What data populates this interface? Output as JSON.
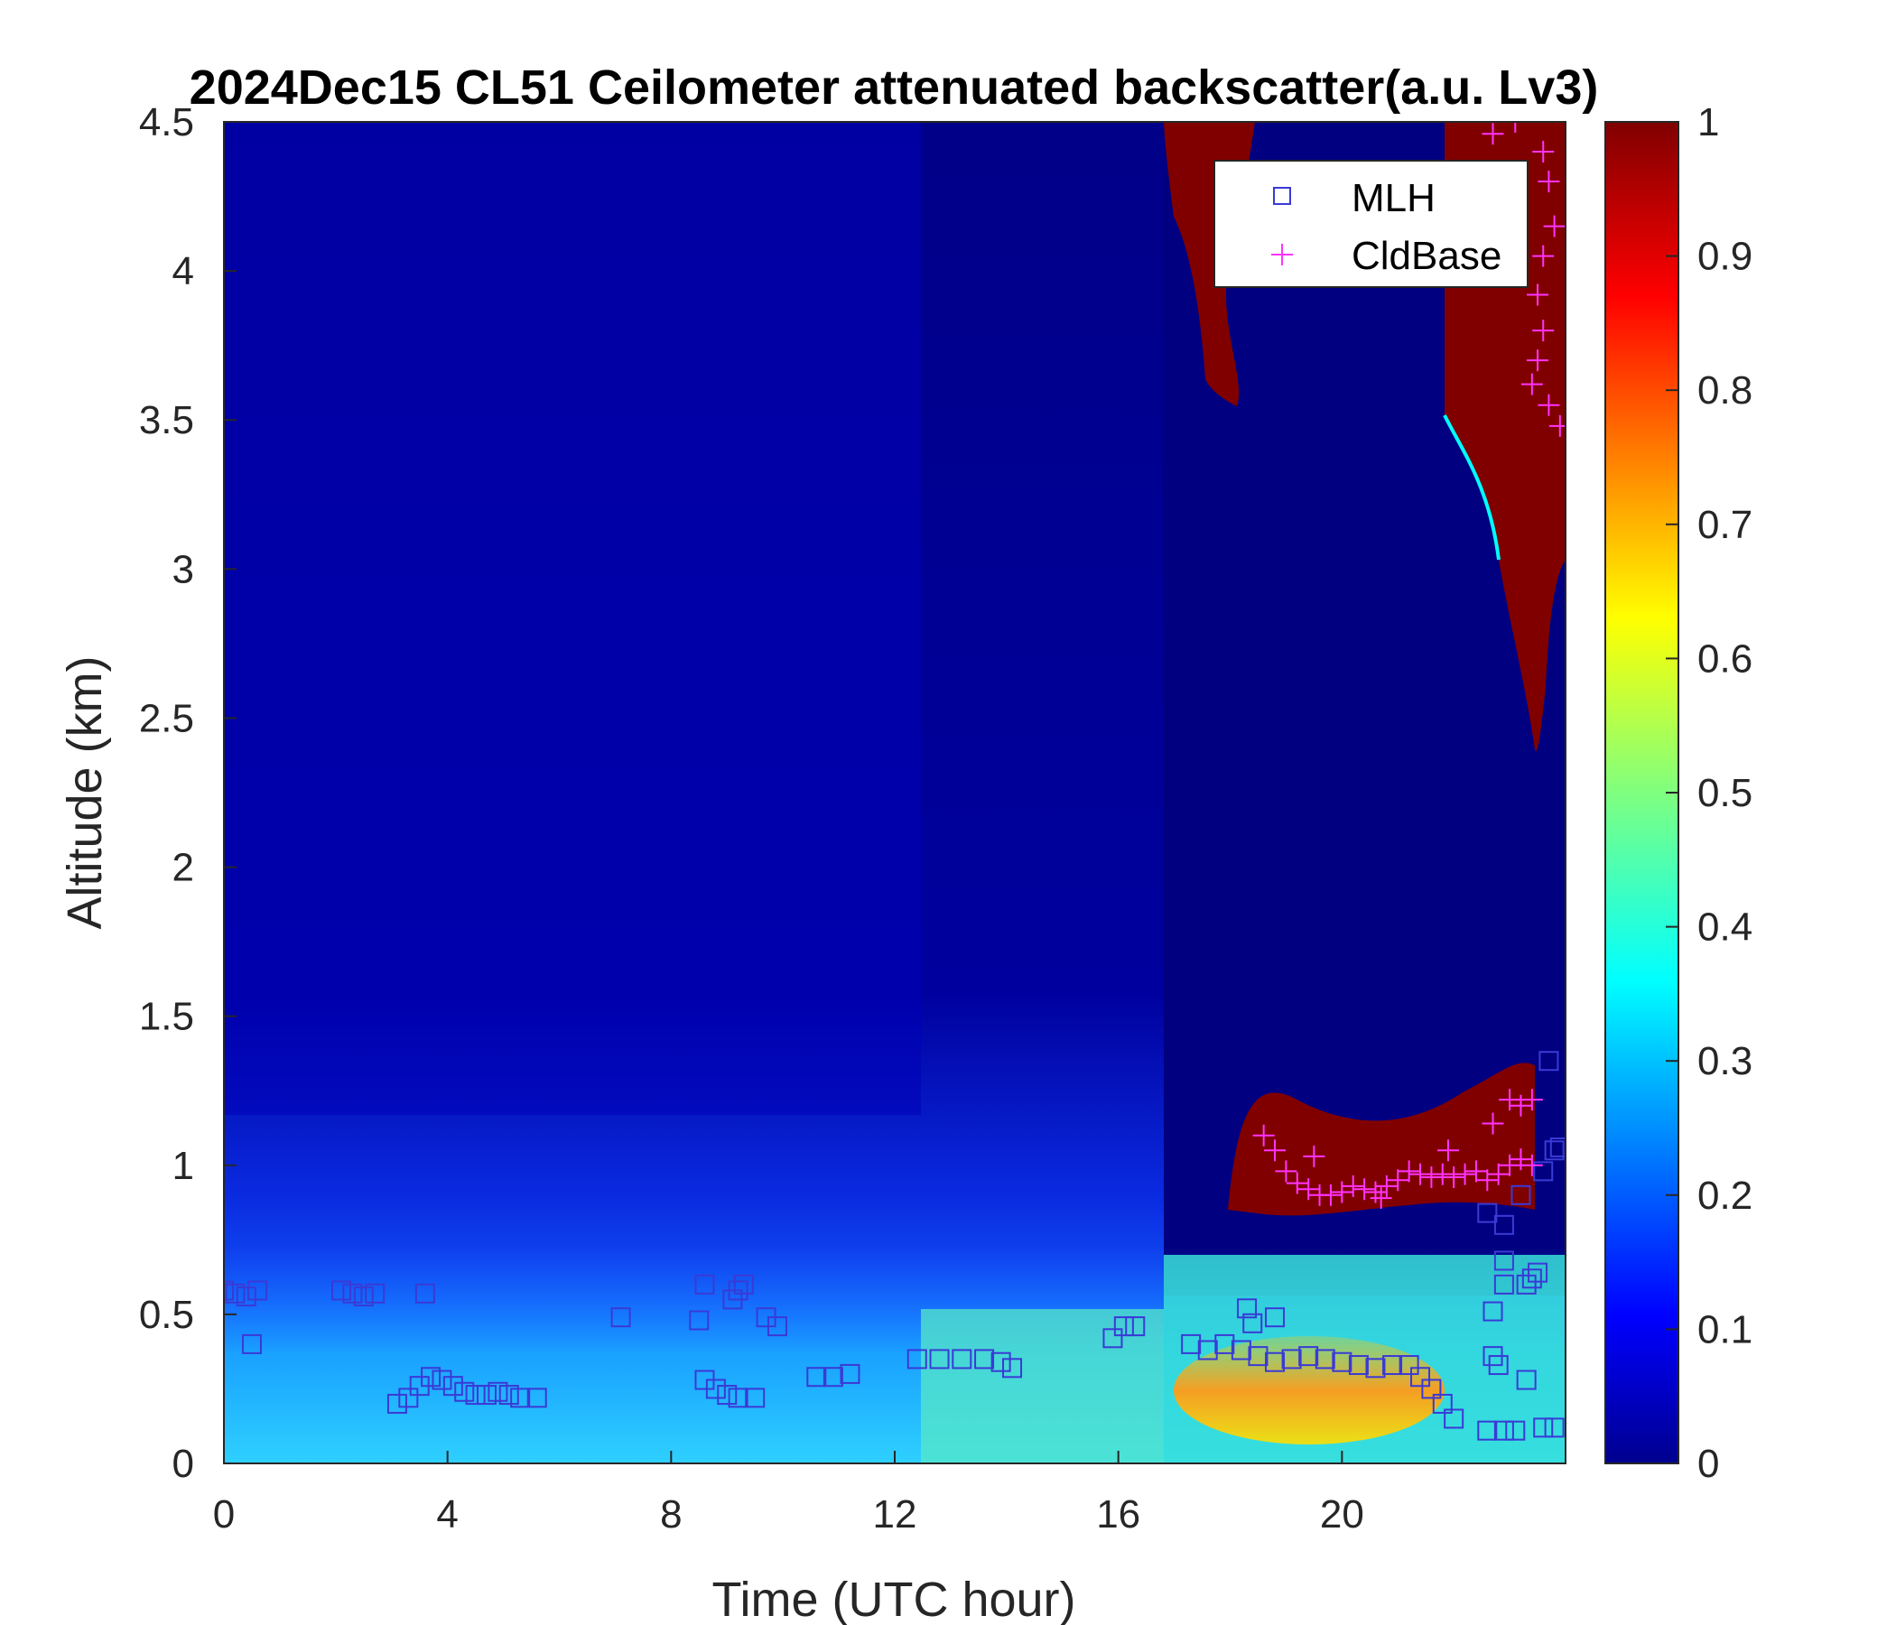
{
  "chart_data": {
    "type": "heatmap",
    "title": "2024Dec15 CL51 Ceilometer attenuated backscatter(a.u. Lv3)",
    "xlabel": "Time (UTC hour)",
    "ylabel": "Altitude (km)",
    "xlim": [
      0,
      24
    ],
    "ylim": [
      0,
      4.5
    ],
    "x_ticks": [
      "0",
      "4",
      "8",
      "12",
      "16",
      "20"
    ],
    "y_ticks": [
      "0",
      "0.5",
      "1",
      "1.5",
      "2",
      "2.5",
      "3",
      "3.5",
      "4",
      "4.5"
    ],
    "colorbar": {
      "range": [
        0,
        1
      ],
      "ticks": [
        "0",
        "0.1",
        "0.2",
        "0.3",
        "0.4",
        "0.5",
        "0.6",
        "0.7",
        "0.8",
        "0.9",
        "1"
      ],
      "colormap": "jet"
    },
    "legend": {
      "position": "top-right",
      "entries": [
        {
          "label": "MLH",
          "marker": "square",
          "color": "#3a3ad6"
        },
        {
          "label": "CldBase",
          "marker": "plus",
          "color": "#ff33ff"
        }
      ]
    },
    "series": [
      {
        "name": "MLH",
        "marker": "square",
        "color": "#3a3ad6",
        "points": [
          [
            0.0,
            0.58
          ],
          [
            0.2,
            0.57
          ],
          [
            0.4,
            0.56
          ],
          [
            0.6,
            0.58
          ],
          [
            0.5,
            0.4
          ],
          [
            2.1,
            0.58
          ],
          [
            2.3,
            0.57
          ],
          [
            2.5,
            0.56
          ],
          [
            2.7,
            0.57
          ],
          [
            3.6,
            0.57
          ],
          [
            3.1,
            0.2
          ],
          [
            3.3,
            0.22
          ],
          [
            3.5,
            0.26
          ],
          [
            3.7,
            0.29
          ],
          [
            3.9,
            0.28
          ],
          [
            4.1,
            0.26
          ],
          [
            4.3,
            0.24
          ],
          [
            4.5,
            0.23
          ],
          [
            4.7,
            0.23
          ],
          [
            4.9,
            0.24
          ],
          [
            5.1,
            0.23
          ],
          [
            5.3,
            0.22
          ],
          [
            5.6,
            0.22
          ],
          [
            7.1,
            0.49
          ],
          [
            8.5,
            0.48
          ],
          [
            8.6,
            0.6
          ],
          [
            8.6,
            0.28
          ],
          [
            8.8,
            0.25
          ],
          [
            9.0,
            0.23
          ],
          [
            9.2,
            0.22
          ],
          [
            9.5,
            0.22
          ],
          [
            9.1,
            0.55
          ],
          [
            9.2,
            0.58
          ],
          [
            9.3,
            0.6
          ],
          [
            9.7,
            0.49
          ],
          [
            9.9,
            0.46
          ],
          [
            10.6,
            0.29
          ],
          [
            10.9,
            0.29
          ],
          [
            11.2,
            0.3
          ],
          [
            12.4,
            0.35
          ],
          [
            12.8,
            0.35
          ],
          [
            13.2,
            0.35
          ],
          [
            13.6,
            0.35
          ],
          [
            13.9,
            0.34
          ],
          [
            14.1,
            0.32
          ],
          [
            15.9,
            0.42
          ],
          [
            16.1,
            0.46
          ],
          [
            16.3,
            0.46
          ],
          [
            17.3,
            0.4
          ],
          [
            17.6,
            0.38
          ],
          [
            17.9,
            0.4
          ],
          [
            18.2,
            0.38
          ],
          [
            18.5,
            0.36
          ],
          [
            18.8,
            0.34
          ],
          [
            19.1,
            0.35
          ],
          [
            19.4,
            0.36
          ],
          [
            19.7,
            0.35
          ],
          [
            20.0,
            0.34
          ],
          [
            20.3,
            0.33
          ],
          [
            20.6,
            0.32
          ],
          [
            20.9,
            0.33
          ],
          [
            21.2,
            0.33
          ],
          [
            21.4,
            0.29
          ],
          [
            21.6,
            0.25
          ],
          [
            21.8,
            0.2
          ],
          [
            22.0,
            0.15
          ],
          [
            18.3,
            0.52
          ],
          [
            18.4,
            0.47
          ],
          [
            18.8,
            0.49
          ],
          [
            22.6,
            0.11
          ],
          [
            22.9,
            0.11
          ],
          [
            23.1,
            0.11
          ],
          [
            23.6,
            0.12
          ],
          [
            23.8,
            0.12
          ],
          [
            22.7,
            0.36
          ],
          [
            22.8,
            0.33
          ],
          [
            22.7,
            0.51
          ],
          [
            22.9,
            0.6
          ],
          [
            22.9,
            0.68
          ],
          [
            23.3,
            0.28
          ],
          [
            23.3,
            0.6
          ],
          [
            23.4,
            0.62
          ],
          [
            23.5,
            0.64
          ],
          [
            22.6,
            0.84
          ],
          [
            22.9,
            0.8
          ],
          [
            23.2,
            0.9
          ],
          [
            23.6,
            0.98
          ],
          [
            23.9,
            1.06
          ],
          [
            23.8,
            1.05
          ],
          [
            23.7,
            1.35
          ]
        ]
      },
      {
        "name": "CldBase",
        "marker": "plus",
        "color": "#ff33ff",
        "points": [
          [
            18.6,
            1.1
          ],
          [
            18.8,
            1.05
          ],
          [
            19.0,
            0.98
          ],
          [
            19.2,
            0.94
          ],
          [
            19.4,
            0.92
          ],
          [
            19.6,
            0.9
          ],
          [
            19.8,
            0.9
          ],
          [
            20.0,
            0.91
          ],
          [
            20.2,
            0.93
          ],
          [
            20.4,
            0.92
          ],
          [
            20.6,
            0.91
          ],
          [
            20.8,
            0.93
          ],
          [
            21.0,
            0.95
          ],
          [
            21.2,
            0.98
          ],
          [
            21.4,
            0.97
          ],
          [
            21.6,
            0.96
          ],
          [
            21.8,
            0.97
          ],
          [
            22.0,
            0.96
          ],
          [
            22.2,
            0.97
          ],
          [
            22.4,
            0.98
          ],
          [
            22.6,
            0.95
          ],
          [
            22.8,
            0.97
          ],
          [
            23.0,
            1.0
          ],
          [
            23.2,
            1.02
          ],
          [
            23.4,
            1.0
          ],
          [
            19.5,
            1.03
          ],
          [
            20.7,
            0.89
          ],
          [
            21.9,
            1.05
          ],
          [
            22.7,
            1.14
          ],
          [
            23.0,
            1.22
          ],
          [
            23.2,
            1.2
          ],
          [
            23.4,
            1.22
          ],
          [
            22.7,
            4.46
          ],
          [
            23.1,
            4.5
          ],
          [
            23.6,
            4.4
          ],
          [
            23.7,
            4.3
          ],
          [
            23.8,
            4.15
          ],
          [
            23.6,
            4.05
          ],
          [
            23.5,
            3.92
          ],
          [
            23.6,
            3.8
          ],
          [
            23.5,
            3.7
          ],
          [
            23.4,
            3.62
          ],
          [
            23.7,
            3.55
          ],
          [
            23.9,
            3.48
          ]
        ]
      }
    ]
  }
}
